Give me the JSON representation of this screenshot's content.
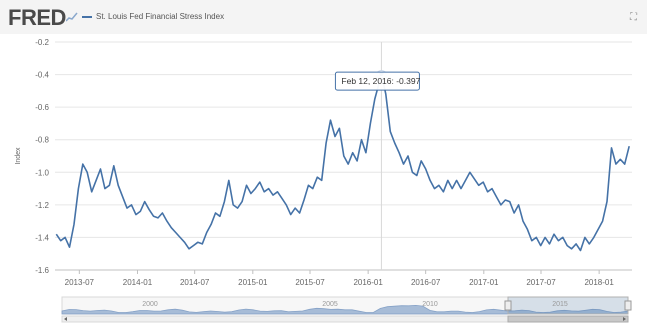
{
  "header": {
    "logo_text": "FRED",
    "logo_icon": "chart-line-icon",
    "legend_label": "St. Louis Fed Financial Stress Index",
    "expand_icon": "expand-icon"
  },
  "tooltip": {
    "text": "Feb 12, 2016: -0.397"
  },
  "navigator": {
    "labels": [
      "2000",
      "2005",
      "2010",
      "2015"
    ]
  },
  "colors": {
    "series": "#4572a7",
    "navigator_fill": "#9fb6d4",
    "highlight": "#4572a7"
  },
  "chart_data": {
    "type": "line",
    "title": "",
    "ylabel": "Index",
    "xlabel": "",
    "ylim": [
      -1.6,
      -0.2
    ],
    "yticks": [
      -0.2,
      -0.4,
      -0.6,
      -0.8,
      -1.0,
      -1.2,
      -1.4,
      -1.6
    ],
    "ytick_labels": [
      "-0.2",
      "-0.4",
      "-0.6",
      "-0.8",
      "-1.0",
      "-1.2",
      "-1.4",
      "-1.6"
    ],
    "xlim": [
      "2013-04-15",
      "2018-04-15"
    ],
    "xticks": [
      "2013-07-01",
      "2014-01-01",
      "2014-07-01",
      "2015-01-01",
      "2015-07-01",
      "2016-01-01",
      "2016-07-01",
      "2017-01-01",
      "2017-07-01",
      "2018-01-01"
    ],
    "xtick_labels": [
      "2013-07",
      "2014-01",
      "2014-07",
      "2015-01",
      "2015-07",
      "2016-01",
      "2016-07",
      "2017-01",
      "2017-07",
      "2018-01"
    ],
    "grid": "horizontal",
    "highlight": {
      "date": "2016-02-12",
      "value": -0.397
    },
    "series": [
      {
        "name": "St. Louis Fed Financial Stress Index",
        "points": [
          [
            "2013-04-19",
            -1.38
          ],
          [
            "2013-05-03",
            -1.42
          ],
          [
            "2013-05-17",
            -1.4
          ],
          [
            "2013-05-31",
            -1.46
          ],
          [
            "2013-06-14",
            -1.32
          ],
          [
            "2013-06-28",
            -1.1
          ],
          [
            "2013-07-12",
            -0.95
          ],
          [
            "2013-07-26",
            -1.0
          ],
          [
            "2013-08-09",
            -1.12
          ],
          [
            "2013-08-23",
            -1.05
          ],
          [
            "2013-09-06",
            -0.98
          ],
          [
            "2013-09-20",
            -1.1
          ],
          [
            "2013-10-04",
            -1.08
          ],
          [
            "2013-10-18",
            -0.96
          ],
          [
            "2013-11-01",
            -1.08
          ],
          [
            "2013-11-15",
            -1.15
          ],
          [
            "2013-11-29",
            -1.22
          ],
          [
            "2013-12-13",
            -1.2
          ],
          [
            "2013-12-27",
            -1.26
          ],
          [
            "2014-01-10",
            -1.24
          ],
          [
            "2014-01-24",
            -1.18
          ],
          [
            "2014-02-07",
            -1.23
          ],
          [
            "2014-02-21",
            -1.27
          ],
          [
            "2014-03-07",
            -1.28
          ],
          [
            "2014-03-21",
            -1.25
          ],
          [
            "2014-04-04",
            -1.3
          ],
          [
            "2014-04-18",
            -1.34
          ],
          [
            "2014-05-02",
            -1.37
          ],
          [
            "2014-05-16",
            -1.4
          ],
          [
            "2014-05-30",
            -1.43
          ],
          [
            "2014-06-13",
            -1.47
          ],
          [
            "2014-06-27",
            -1.45
          ],
          [
            "2014-07-11",
            -1.43
          ],
          [
            "2014-07-25",
            -1.44
          ],
          [
            "2014-08-08",
            -1.37
          ],
          [
            "2014-08-22",
            -1.32
          ],
          [
            "2014-09-05",
            -1.25
          ],
          [
            "2014-09-19",
            -1.27
          ],
          [
            "2014-10-03",
            -1.18
          ],
          [
            "2014-10-17",
            -1.05
          ],
          [
            "2014-10-31",
            -1.2
          ],
          [
            "2014-11-14",
            -1.22
          ],
          [
            "2014-11-28",
            -1.18
          ],
          [
            "2014-12-12",
            -1.08
          ],
          [
            "2014-12-26",
            -1.13
          ],
          [
            "2015-01-09",
            -1.1
          ],
          [
            "2015-01-23",
            -1.06
          ],
          [
            "2015-02-06",
            -1.12
          ],
          [
            "2015-02-20",
            -1.1
          ],
          [
            "2015-03-06",
            -1.14
          ],
          [
            "2015-03-20",
            -1.12
          ],
          [
            "2015-04-03",
            -1.16
          ],
          [
            "2015-04-17",
            -1.2
          ],
          [
            "2015-05-01",
            -1.26
          ],
          [
            "2015-05-15",
            -1.22
          ],
          [
            "2015-05-29",
            -1.25
          ],
          [
            "2015-06-12",
            -1.17
          ],
          [
            "2015-06-26",
            -1.08
          ],
          [
            "2015-07-10",
            -1.1
          ],
          [
            "2015-07-24",
            -1.03
          ],
          [
            "2015-08-07",
            -1.05
          ],
          [
            "2015-08-21",
            -0.82
          ],
          [
            "2015-09-04",
            -0.68
          ],
          [
            "2015-09-18",
            -0.78
          ],
          [
            "2015-10-02",
            -0.73
          ],
          [
            "2015-10-16",
            -0.9
          ],
          [
            "2015-10-30",
            -0.95
          ],
          [
            "2015-11-13",
            -0.88
          ],
          [
            "2015-11-27",
            -0.93
          ],
          [
            "2015-12-11",
            -0.8
          ],
          [
            "2015-12-25",
            -0.88
          ],
          [
            "2016-01-08",
            -0.7
          ],
          [
            "2016-01-22",
            -0.55
          ],
          [
            "2016-02-05",
            -0.45
          ],
          [
            "2016-02-12",
            -0.397
          ],
          [
            "2016-02-26",
            -0.52
          ],
          [
            "2016-03-11",
            -0.75
          ],
          [
            "2016-03-25",
            -0.82
          ],
          [
            "2016-04-08",
            -0.88
          ],
          [
            "2016-04-22",
            -0.95
          ],
          [
            "2016-05-06",
            -0.9
          ],
          [
            "2016-05-20",
            -1.0
          ],
          [
            "2016-06-03",
            -1.02
          ],
          [
            "2016-06-17",
            -0.93
          ],
          [
            "2016-07-01",
            -0.98
          ],
          [
            "2016-07-15",
            -1.05
          ],
          [
            "2016-07-29",
            -1.1
          ],
          [
            "2016-08-12",
            -1.08
          ],
          [
            "2016-08-26",
            -1.12
          ],
          [
            "2016-09-09",
            -1.05
          ],
          [
            "2016-09-23",
            -1.1
          ],
          [
            "2016-10-07",
            -1.05
          ],
          [
            "2016-10-21",
            -1.1
          ],
          [
            "2016-11-04",
            -1.05
          ],
          [
            "2016-11-18",
            -1.0
          ],
          [
            "2016-12-02",
            -1.04
          ],
          [
            "2016-12-16",
            -1.08
          ],
          [
            "2016-12-30",
            -1.06
          ],
          [
            "2017-01-13",
            -1.12
          ],
          [
            "2017-01-27",
            -1.1
          ],
          [
            "2017-02-10",
            -1.15
          ],
          [
            "2017-02-24",
            -1.2
          ],
          [
            "2017-03-10",
            -1.17
          ],
          [
            "2017-03-24",
            -1.18
          ],
          [
            "2017-04-07",
            -1.25
          ],
          [
            "2017-04-21",
            -1.2
          ],
          [
            "2017-05-05",
            -1.3
          ],
          [
            "2017-05-19",
            -1.35
          ],
          [
            "2017-06-02",
            -1.42
          ],
          [
            "2017-06-16",
            -1.4
          ],
          [
            "2017-06-30",
            -1.45
          ],
          [
            "2017-07-14",
            -1.4
          ],
          [
            "2017-07-28",
            -1.44
          ],
          [
            "2017-08-11",
            -1.38
          ],
          [
            "2017-08-25",
            -1.42
          ],
          [
            "2017-09-08",
            -1.4
          ],
          [
            "2017-09-22",
            -1.45
          ],
          [
            "2017-10-06",
            -1.47
          ],
          [
            "2017-10-20",
            -1.44
          ],
          [
            "2017-11-03",
            -1.48
          ],
          [
            "2017-11-17",
            -1.4
          ],
          [
            "2017-12-01",
            -1.44
          ],
          [
            "2017-12-15",
            -1.4
          ],
          [
            "2017-12-29",
            -1.35
          ],
          [
            "2018-01-12",
            -1.3
          ],
          [
            "2018-01-26",
            -1.18
          ],
          [
            "2018-02-09",
            -0.85
          ],
          [
            "2018-02-23",
            -0.95
          ],
          [
            "2018-03-09",
            -0.92
          ],
          [
            "2018-03-23",
            -0.95
          ],
          [
            "2018-04-06",
            -0.84
          ]
        ]
      }
    ]
  }
}
